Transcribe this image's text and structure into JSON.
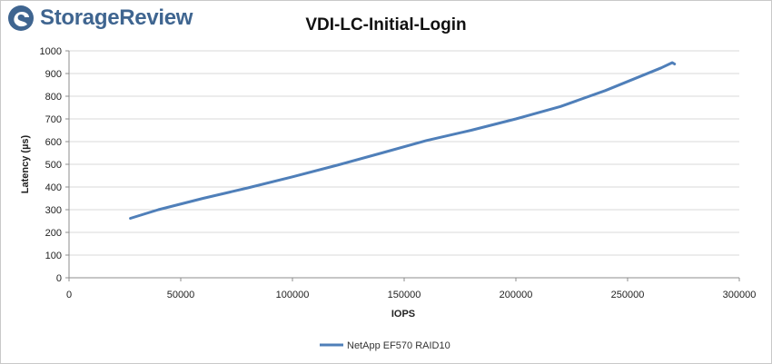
{
  "brand": {
    "name": "StorageReview",
    "color": "#3f6590"
  },
  "chart_data": {
    "type": "line",
    "title": "VDI-LC-Initial-Login",
    "xlabel": "IOPS",
    "ylabel": "Latency (µs)",
    "xlim": [
      0,
      300000
    ],
    "ylim": [
      0,
      1000
    ],
    "xticks": [
      "0",
      "50000",
      "100000",
      "150000",
      "200000",
      "250000",
      "300000"
    ],
    "yticks": [
      "0",
      "100",
      "200",
      "300",
      "400",
      "500",
      "600",
      "700",
      "800",
      "900",
      "1000"
    ],
    "grid": true,
    "legend_position": "bottom",
    "series": [
      {
        "name": "NetApp EF570 RAID10",
        "color": "#4f7fb9",
        "x": [
          27500,
          40000,
          60000,
          80000,
          100000,
          120000,
          140000,
          160000,
          180000,
          200000,
          220000,
          240000,
          255000,
          265000,
          270000,
          271000
        ],
        "y": [
          262,
          300,
          350,
          396,
          445,
          496,
          550,
          605,
          650,
          700,
          755,
          825,
          885,
          925,
          948,
          942
        ]
      }
    ]
  }
}
